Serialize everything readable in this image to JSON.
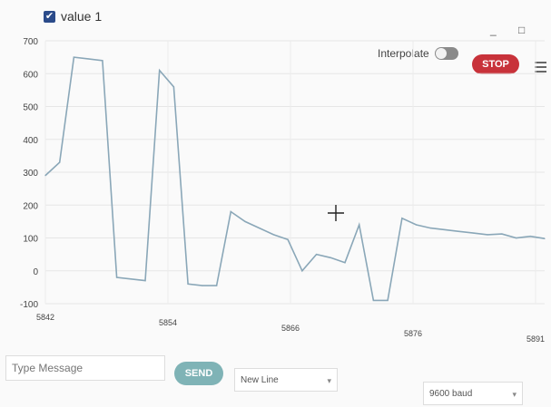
{
  "legend": {
    "label": "value 1",
    "checked": true
  },
  "window": {
    "minimize_glyph": "_",
    "maximize_glyph": "□"
  },
  "controls": {
    "interpolate_label": "Interpolate",
    "interpolate_on": false,
    "stop_label": "STOP"
  },
  "chart_data": {
    "type": "line",
    "x_ticks": [
      "5842",
      "5854",
      "5866",
      "5876",
      "5891"
    ],
    "y_ticks": [
      "700",
      "600",
      "500",
      "400",
      "300",
      "200",
      "100",
      "0",
      "-100"
    ],
    "ylim": [
      -100,
      700
    ],
    "grid": true,
    "series": [
      {
        "name": "value 1",
        "color": "#8aa7b8",
        "values": [
          290,
          330,
          650,
          645,
          640,
          -20,
          -25,
          -30,
          610,
          560,
          -40,
          -45,
          -45,
          180,
          150,
          130,
          110,
          95,
          0,
          50,
          40,
          25,
          140,
          -90,
          -90,
          160,
          140,
          130,
          125,
          120,
          115,
          110,
          112,
          100,
          105,
          98
        ]
      }
    ]
  },
  "footer": {
    "message_placeholder": "Type Message",
    "send_label": "SEND",
    "line_ending": "New Line",
    "baud": "9600 baud"
  }
}
